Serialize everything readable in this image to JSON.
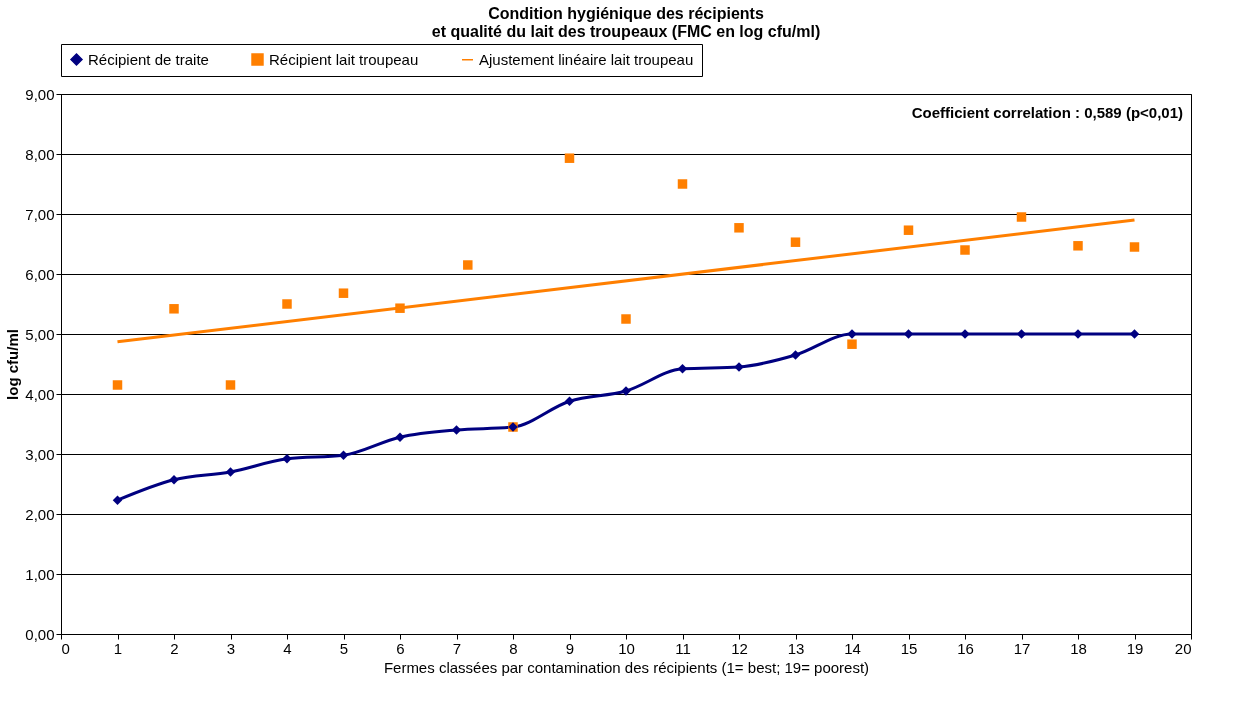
{
  "chart_data": {
    "type": "line",
    "title": "Condition hygiénique des récipients\net qualité du lait des troupeaux (FMC en log cfu/ml)",
    "xlabel": "Fermes classées par contamination des récipients (1= best; 19= poorest)",
    "ylabel": "log cfu/ml",
    "annotations": [
      "Coefficient correlation : 0,589 (p<0,01)"
    ],
    "xlim": [
      0,
      20
    ],
    "xticks": [
      0,
      1,
      2,
      3,
      4,
      5,
      6,
      7,
      8,
      9,
      10,
      11,
      12,
      13,
      14,
      15,
      16,
      17,
      18,
      19,
      20
    ],
    "ylim": [
      0,
      9
    ],
    "yticks": [
      {
        "value": 0,
        "label": "0,00"
      },
      {
        "value": 1,
        "label": "1,00"
      },
      {
        "value": 2,
        "label": "2,00"
      },
      {
        "value": 3,
        "label": "3,00"
      },
      {
        "value": 4,
        "label": "4,00"
      },
      {
        "value": 5,
        "label": "5,00"
      },
      {
        "value": 6,
        "label": "6,00"
      },
      {
        "value": 7,
        "label": "7,00"
      },
      {
        "value": 8,
        "label": "8,00"
      },
      {
        "value": 9,
        "label": "9,00"
      }
    ],
    "grid": "y",
    "legend": "top",
    "series": [
      {
        "name": "Récipient de traite",
        "type": "line",
        "marker": "diamond",
        "color": "#000080",
        "x": [
          1,
          2,
          3,
          4,
          5,
          6,
          7,
          8,
          9,
          10,
          11,
          12,
          13,
          14,
          15,
          16,
          17,
          18,
          19
        ],
        "values": [
          2.23,
          2.57,
          2.7,
          2.92,
          2.98,
          3.28,
          3.4,
          3.45,
          3.88,
          4.05,
          4.42,
          4.45,
          4.65,
          5.0,
          5.0,
          5.0,
          5.0,
          5.0,
          5.0
        ]
      },
      {
        "name": "Récipient lait troupeau",
        "type": "scatter",
        "marker": "square",
        "color": "#ff7f00",
        "x": [
          1,
          2,
          3,
          4,
          5,
          6,
          7.2,
          8,
          9,
          10,
          11,
          12,
          13,
          14,
          15,
          16,
          17,
          18,
          19
        ],
        "values": [
          4.15,
          5.42,
          4.15,
          5.5,
          5.68,
          5.43,
          6.15,
          3.45,
          7.93,
          5.25,
          7.5,
          6.77,
          6.53,
          4.83,
          6.73,
          6.4,
          6.95,
          6.47,
          6.45
        ]
      },
      {
        "name": "Ajustement linéaire lait troupeau",
        "type": "line",
        "marker": "none",
        "color": "#ff7f00",
        "x": [
          1,
          19
        ],
        "values": [
          4.87,
          6.9
        ]
      }
    ]
  }
}
